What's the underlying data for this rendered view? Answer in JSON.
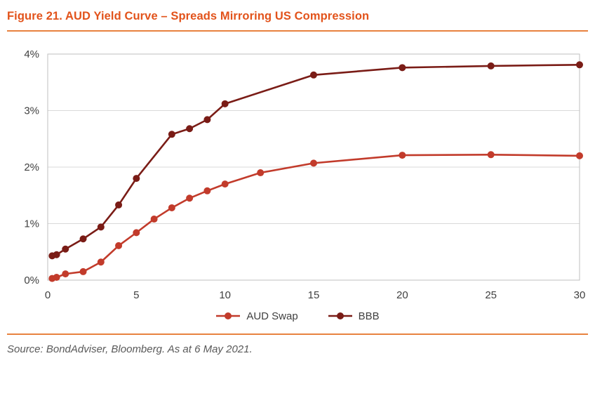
{
  "figure": {
    "title": "Figure 21. AUD Yield Curve – Spreads Mirroring US Compression",
    "source": "Source: BondAdviser, Bloomberg. As at 6 May 2021."
  },
  "colors": {
    "title": "#E2531B",
    "divider": "#E8823F",
    "grid": "#D9D9D9",
    "plot_border": "#BFBFBF",
    "axis_text": "#404040",
    "source_text": "#595959"
  },
  "chart_data": {
    "type": "line",
    "title": "Figure 21. AUD Yield Curve – Spreads Mirroring US Compression",
    "xlabel": "",
    "ylabel": "",
    "xlim": [
      0,
      30
    ],
    "ylim": [
      0,
      4
    ],
    "grid": true,
    "legend_position": "bottom",
    "x_ticks": [
      {
        "value": 0,
        "label": "0"
      },
      {
        "value": 5,
        "label": "5"
      },
      {
        "value": 10,
        "label": "10"
      },
      {
        "value": 15,
        "label": "15"
      },
      {
        "value": 20,
        "label": "20"
      },
      {
        "value": 25,
        "label": "25"
      },
      {
        "value": 30,
        "label": "30"
      }
    ],
    "y_ticks": [
      {
        "value": 0,
        "label": "0%"
      },
      {
        "value": 1,
        "label": "1%"
      },
      {
        "value": 2,
        "label": "2%"
      },
      {
        "value": 3,
        "label": "3%"
      },
      {
        "value": 4,
        "label": "4%"
      }
    ],
    "series": [
      {
        "name": "AUD Swap",
        "color": "#C23B2B",
        "x": [
          0.25,
          0.5,
          1,
          2,
          3,
          4,
          5,
          6,
          7,
          8,
          9,
          10,
          12,
          15,
          20,
          25,
          30
        ],
        "y": [
          0.03,
          0.05,
          0.11,
          0.15,
          0.32,
          0.61,
          0.84,
          1.08,
          1.28,
          1.45,
          1.58,
          1.7,
          1.9,
          2.07,
          2.21,
          2.22,
          2.2
        ]
      },
      {
        "name": "BBB",
        "color": "#7A1C16",
        "x": [
          0.25,
          0.5,
          1,
          2,
          3,
          4,
          5,
          7,
          8,
          9,
          10,
          15,
          20,
          25,
          30
        ],
        "y": [
          0.43,
          0.45,
          0.55,
          0.73,
          0.94,
          1.33,
          1.8,
          2.58,
          2.68,
          2.84,
          3.12,
          3.63,
          3.76,
          3.79,
          3.81
        ]
      }
    ]
  }
}
